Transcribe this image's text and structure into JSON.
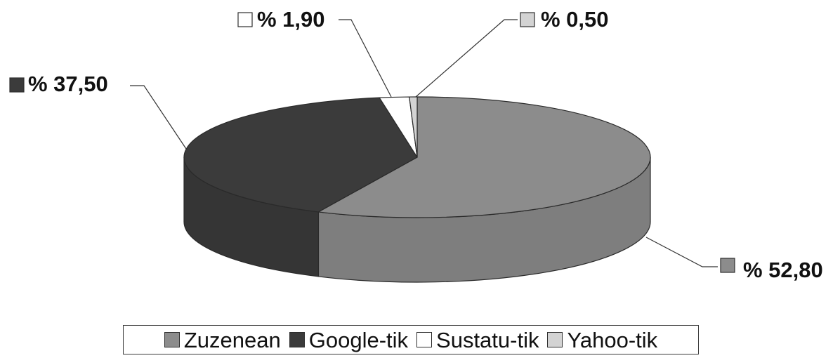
{
  "chart_data": {
    "type": "pie",
    "categories": [
      "Zuzenean",
      "Google-tik",
      "Sustatu-tik",
      "Yahoo-tik"
    ],
    "values": [
      52.8,
      37.5,
      1.9,
      0.5
    ],
    "data_labels": [
      "% 52,80",
      "% 37,50",
      "% 1,90",
      "% 0,50"
    ],
    "colors": [
      "#8c8c8c",
      "#3b3b3b",
      "#ffffff",
      "#d3d3d3"
    ],
    "legend_position": "bottom",
    "style": "3d"
  }
}
